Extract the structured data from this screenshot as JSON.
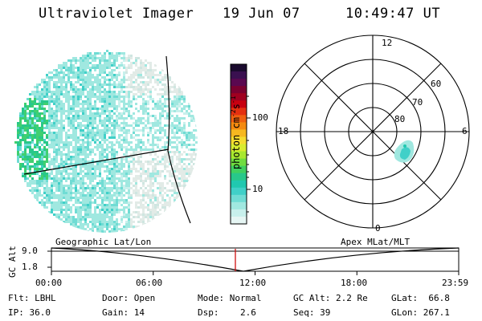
{
  "header": {
    "instrument": "Ultraviolet Imager",
    "date": "19 Jun 07",
    "time": "10:49:47 UT"
  },
  "colorbar": {
    "unit_label": "photon cm",
    "unit_sup1": "-2",
    "unit_mid": "s",
    "unit_sup2": "-1",
    "tick_100": "100",
    "tick_10": "10",
    "colors": [
      "#1a0a2e",
      "#3a1050",
      "#5a0850",
      "#7a0030",
      "#a00020",
      "#c80010",
      "#e43010",
      "#f06010",
      "#f48a10",
      "#f6b820",
      "#f4dc30",
      "#d8ec30",
      "#a8e830",
      "#70dc40",
      "#40d060",
      "#28c88a",
      "#20c8b0",
      "#40d0c8",
      "#70dcd4",
      "#a0e8e0",
      "#c8f0ec",
      "#e6f6f4"
    ]
  },
  "polar": {
    "mlt_12": "12",
    "mlt_18": "18",
    "mlt_6": "6",
    "mlt_0": "0",
    "lat_60": "60",
    "lat_70": "70",
    "lat_80": "80"
  },
  "timeline": {
    "y_label": "GC Alt",
    "y_max": "9.0",
    "y_min": "1.8",
    "left_title": "Geographic Lat/Lon",
    "right_title": "Apex MLat/MLT",
    "ticks": [
      "00:00",
      "06:00",
      "12:00",
      "18:00",
      "23:59"
    ],
    "current_time_fraction": 0.4516
  },
  "info": {
    "flt": "Flt: LBHL",
    "door": "Door: Open",
    "mode": "Mode: Normal",
    "gc_alt": "GC Alt: 2.2 Re",
    "glat": "GLat:  66.8",
    "ip": "IP: 36.0",
    "gain": "Gain: 14",
    "dsp": "Dsp:    2.6",
    "seq": "Seq: 39",
    "glon": "GLon: 267.1"
  }
}
